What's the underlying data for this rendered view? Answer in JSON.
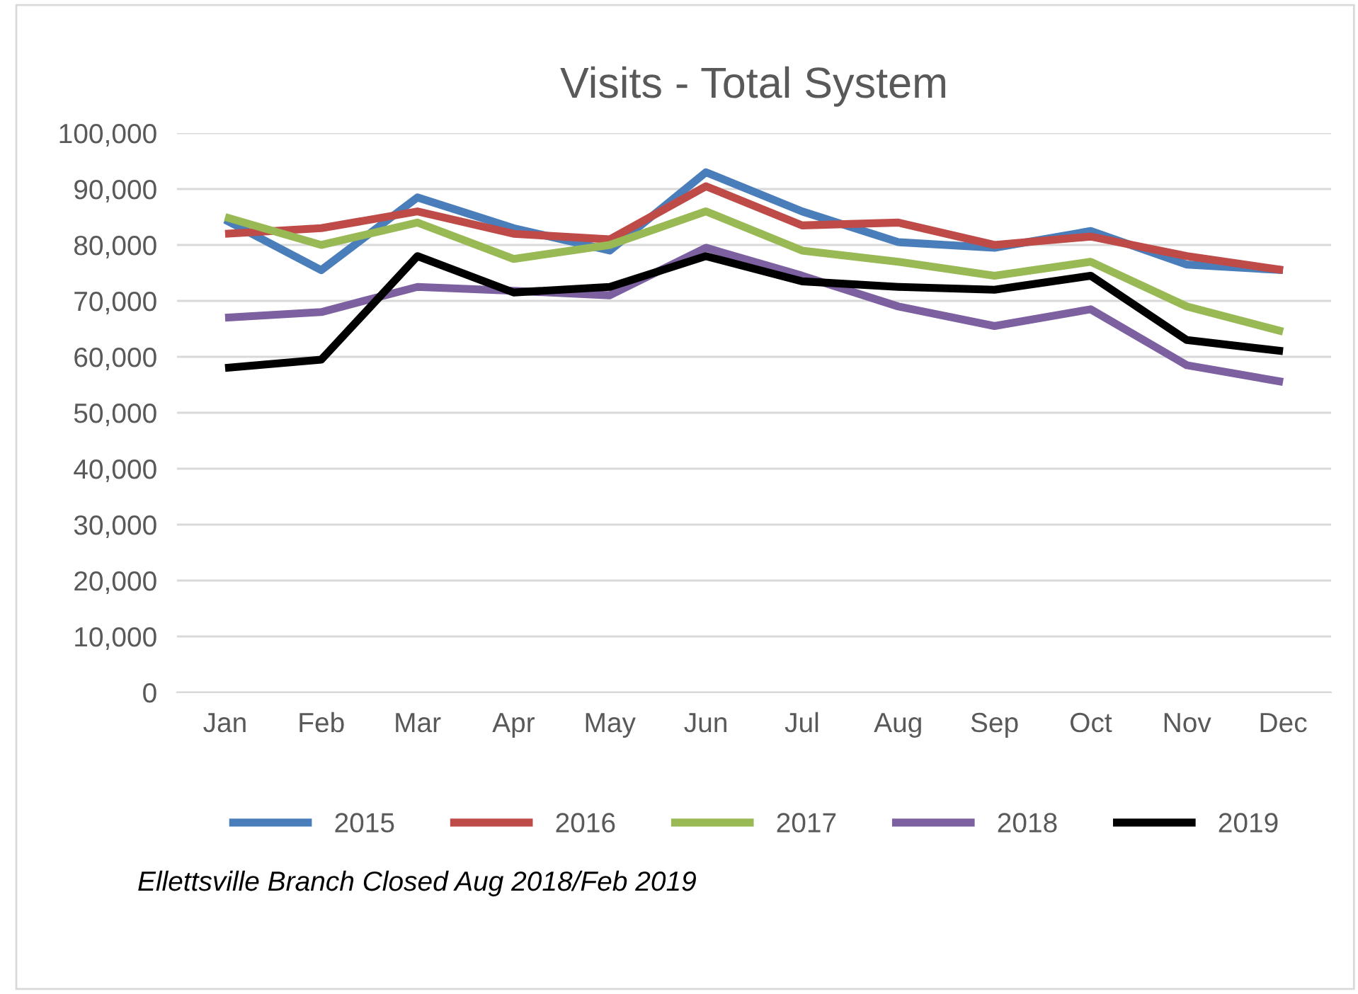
{
  "chart_data": {
    "type": "line",
    "title": "Visits - Total System",
    "categories": [
      "Jan",
      "Feb",
      "Mar",
      "Apr",
      "May",
      "Jun",
      "Jul",
      "Aug",
      "Sep",
      "Oct",
      "Nov",
      "Dec"
    ],
    "series": [
      {
        "name": "2015",
        "color": "#4a7ebb",
        "values": [
          84500,
          75500,
          88500,
          83000,
          79000,
          93000,
          86000,
          80500,
          79500,
          82500,
          76500,
          75500
        ]
      },
      {
        "name": "2016",
        "color": "#be4b48",
        "values": [
          82000,
          83000,
          86000,
          82000,
          81000,
          90500,
          83500,
          84000,
          80000,
          81500,
          78000,
          75500
        ]
      },
      {
        "name": "2017",
        "color": "#98b954",
        "values": [
          85000,
          80000,
          84000,
          77500,
          80000,
          86000,
          79000,
          77000,
          74500,
          77000,
          69000,
          64500
        ]
      },
      {
        "name": "2018",
        "color": "#7d60a0",
        "values": [
          67000,
          68000,
          72500,
          71800,
          71000,
          79500,
          74500,
          69000,
          65500,
          68500,
          58500,
          55500
        ]
      },
      {
        "name": "2019",
        "color": "#000000",
        "values": [
          58000,
          59500,
          78000,
          71500,
          72500,
          78000,
          73500,
          72500,
          72000,
          74500,
          63000,
          61000
        ]
      }
    ],
    "ylim": [
      0,
      100000
    ],
    "yticks": [
      {
        "value": 0,
        "label": "0"
      },
      {
        "value": 10000,
        "label": "10,000"
      },
      {
        "value": 20000,
        "label": "20,000"
      },
      {
        "value": 30000,
        "label": "30,000"
      },
      {
        "value": 40000,
        "label": "40,000"
      },
      {
        "value": 50000,
        "label": "50,000"
      },
      {
        "value": 60000,
        "label": "60,000"
      },
      {
        "value": 70000,
        "label": "70,000"
      },
      {
        "value": 80000,
        "label": "80,000"
      },
      {
        "value": 90000,
        "label": "90,000"
      },
      {
        "value": 100000,
        "label": "100,000"
      }
    ],
    "grid": "y",
    "legend": "bottom",
    "marker": "none",
    "line_style": "solid",
    "annotations": [
      "Ellettsville Branch Closed Aug 2018/Feb 2019"
    ]
  }
}
